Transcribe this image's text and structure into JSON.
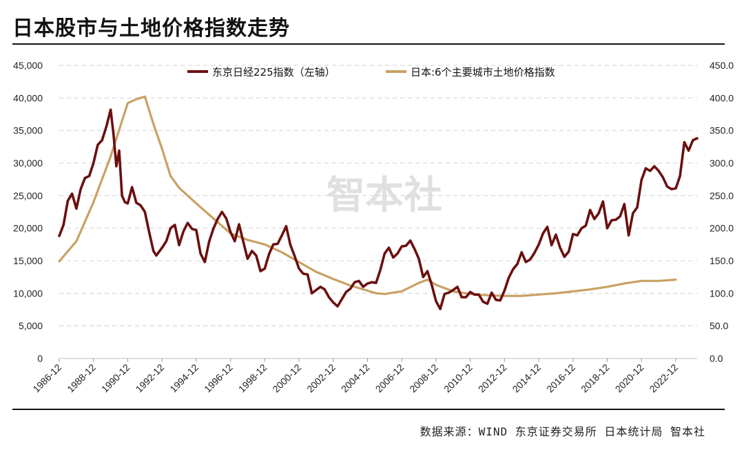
{
  "title": "日本股市与土地价格指数走势",
  "source": "数据来源：WIND 东京证券交易所 日本统计局 智本社",
  "watermark": "智本社",
  "colors": {
    "nikkei": "#6b0f0f",
    "land": "#c9a063",
    "grid": "#d0d0d0"
  },
  "chart_data": {
    "type": "line",
    "x_start": "1986-12",
    "x_end": "2024-03",
    "x_tick_labels": [
      "1986-12",
      "1988-12",
      "1990-12",
      "1992-12",
      "1994-12",
      "1996-12",
      "1998-12",
      "2000-12",
      "2002-12",
      "2004-12",
      "2006-12",
      "2008-12",
      "2010-12",
      "2012-12",
      "2014-12",
      "2016-12",
      "2018-12",
      "2020-12",
      "2022-12"
    ],
    "y_left_ticks": [
      "0",
      "5,000",
      "10,000",
      "15,000",
      "20,000",
      "25,000",
      "30,000",
      "35,000",
      "40,000",
      "45,000"
    ],
    "y_right_ticks": [
      "0.0",
      "50.0",
      "100.0",
      "150.0",
      "200.0",
      "250.0",
      "300.0",
      "350.0",
      "400.0",
      "450.0"
    ],
    "y_left_lim": [
      0,
      45000
    ],
    "y_right_lim": [
      0,
      450
    ],
    "grid": "horizontal-dashed",
    "legend_position": "top",
    "series": [
      {
        "name": "东京日经225指数（左轴）",
        "axis": "left",
        "points": [
          [
            "1986-12",
            18800
          ],
          [
            "1987-03",
            20500
          ],
          [
            "1987-06",
            24200
          ],
          [
            "1987-09",
            25300
          ],
          [
            "1987-12",
            23000
          ],
          [
            "1988-03",
            26000
          ],
          [
            "1988-06",
            27700
          ],
          [
            "1988-09",
            28000
          ],
          [
            "1988-12",
            30000
          ],
          [
            "1989-03",
            32800
          ],
          [
            "1989-06",
            33500
          ],
          [
            "1989-09",
            35600
          ],
          [
            "1989-12",
            38200
          ],
          [
            "1990-02",
            34500
          ],
          [
            "1990-04",
            29500
          ],
          [
            "1990-06",
            31900
          ],
          [
            "1990-08",
            25000
          ],
          [
            "1990-10",
            24000
          ],
          [
            "1990-12",
            23800
          ],
          [
            "1991-03",
            26300
          ],
          [
            "1991-06",
            23900
          ],
          [
            "1991-09",
            23500
          ],
          [
            "1991-12",
            22500
          ],
          [
            "1992-03",
            19400
          ],
          [
            "1992-06",
            16500
          ],
          [
            "1992-08",
            15800
          ],
          [
            "1992-12",
            17000
          ],
          [
            "1993-03",
            18000
          ],
          [
            "1993-06",
            20000
          ],
          [
            "1993-09",
            20500
          ],
          [
            "1993-12",
            17400
          ],
          [
            "1994-03",
            19500
          ],
          [
            "1994-06",
            20800
          ],
          [
            "1994-09",
            19900
          ],
          [
            "1994-12",
            19700
          ],
          [
            "1995-03",
            16100
          ],
          [
            "1995-06",
            14800
          ],
          [
            "1995-09",
            17900
          ],
          [
            "1995-12",
            19900
          ],
          [
            "1996-03",
            21400
          ],
          [
            "1996-06",
            22500
          ],
          [
            "1996-09",
            21500
          ],
          [
            "1996-12",
            19400
          ],
          [
            "1997-03",
            18000
          ],
          [
            "1997-06",
            20600
          ],
          [
            "1997-09",
            17900
          ],
          [
            "1997-12",
            15300
          ],
          [
            "1998-03",
            16500
          ],
          [
            "1998-06",
            15800
          ],
          [
            "1998-09",
            13400
          ],
          [
            "1998-12",
            13800
          ],
          [
            "1999-03",
            16000
          ],
          [
            "1999-06",
            17500
          ],
          [
            "1999-09",
            17600
          ],
          [
            "1999-12",
            18900
          ],
          [
            "2000-03",
            20300
          ],
          [
            "2000-06",
            17400
          ],
          [
            "2000-09",
            15700
          ],
          [
            "2000-12",
            13800
          ],
          [
            "2001-03",
            13000
          ],
          [
            "2001-06",
            12900
          ],
          [
            "2001-09",
            10000
          ],
          [
            "2001-12",
            10500
          ],
          [
            "2002-03",
            11000
          ],
          [
            "2002-06",
            10600
          ],
          [
            "2002-09",
            9400
          ],
          [
            "2002-12",
            8600
          ],
          [
            "2003-03",
            8000
          ],
          [
            "2003-06",
            9100
          ],
          [
            "2003-09",
            10200
          ],
          [
            "2003-12",
            10700
          ],
          [
            "2004-03",
            11700
          ],
          [
            "2004-06",
            11900
          ],
          [
            "2004-09",
            11000
          ],
          [
            "2004-12",
            11500
          ],
          [
            "2005-03",
            11700
          ],
          [
            "2005-06",
            11600
          ],
          [
            "2005-09",
            13600
          ],
          [
            "2005-12",
            16100
          ],
          [
            "2006-03",
            17000
          ],
          [
            "2006-06",
            15500
          ],
          [
            "2006-09",
            16100
          ],
          [
            "2006-12",
            17200
          ],
          [
            "2007-03",
            17300
          ],
          [
            "2007-06",
            18100
          ],
          [
            "2007-09",
            16800
          ],
          [
            "2007-12",
            15300
          ],
          [
            "2008-03",
            12500
          ],
          [
            "2008-06",
            13400
          ],
          [
            "2008-09",
            11300
          ],
          [
            "2008-12",
            8800
          ],
          [
            "2009-03",
            7600
          ],
          [
            "2009-06",
            9900
          ],
          [
            "2009-09",
            10100
          ],
          [
            "2009-12",
            10500
          ],
          [
            "2010-03",
            11000
          ],
          [
            "2010-06",
            9400
          ],
          [
            "2010-09",
            9400
          ],
          [
            "2010-12",
            10200
          ],
          [
            "2011-03",
            9800
          ],
          [
            "2011-06",
            9800
          ],
          [
            "2011-09",
            8700
          ],
          [
            "2011-12",
            8400
          ],
          [
            "2012-03",
            10100
          ],
          [
            "2012-06",
            9000
          ],
          [
            "2012-09",
            8900
          ],
          [
            "2012-12",
            10400
          ],
          [
            "2013-03",
            12400
          ],
          [
            "2013-06",
            13700
          ],
          [
            "2013-09",
            14500
          ],
          [
            "2013-12",
            16300
          ],
          [
            "2014-03",
            14800
          ],
          [
            "2014-06",
            15200
          ],
          [
            "2014-09",
            16200
          ],
          [
            "2014-12",
            17500
          ],
          [
            "2015-03",
            19200
          ],
          [
            "2015-06",
            20200
          ],
          [
            "2015-09",
            17400
          ],
          [
            "2015-12",
            19000
          ],
          [
            "2016-03",
            17000
          ],
          [
            "2016-06",
            15600
          ],
          [
            "2016-09",
            16400
          ],
          [
            "2016-12",
            19100
          ],
          [
            "2017-03",
            18900
          ],
          [
            "2017-06",
            20000
          ],
          [
            "2017-09",
            20400
          ],
          [
            "2017-12",
            22800
          ],
          [
            "2018-03",
            21400
          ],
          [
            "2018-06",
            22300
          ],
          [
            "2018-09",
            24100
          ],
          [
            "2018-12",
            20000
          ],
          [
            "2019-03",
            21200
          ],
          [
            "2019-06",
            21300
          ],
          [
            "2019-09",
            21800
          ],
          [
            "2019-12",
            23700
          ],
          [
            "2020-03",
            18900
          ],
          [
            "2020-06",
            22300
          ],
          [
            "2020-09",
            23200
          ],
          [
            "2020-12",
            27400
          ],
          [
            "2021-03",
            29200
          ],
          [
            "2021-06",
            28800
          ],
          [
            "2021-09",
            29500
          ],
          [
            "2021-12",
            28800
          ],
          [
            "2022-03",
            27800
          ],
          [
            "2022-06",
            26400
          ],
          [
            "2022-09",
            26000
          ],
          [
            "2022-12",
            26100
          ],
          [
            "2023-03",
            28000
          ],
          [
            "2023-06",
            33200
          ],
          [
            "2023-09",
            31900
          ],
          [
            "2023-12",
            33500
          ],
          [
            "2024-03",
            33800
          ]
        ]
      },
      {
        "name": "日本:6个主要城市土地价格指数",
        "axis": "right",
        "points": [
          [
            "1986-12",
            149
          ],
          [
            "1987-12",
            180
          ],
          [
            "1988-12",
            240
          ],
          [
            "1989-12",
            310
          ],
          [
            "1990-12",
            392
          ],
          [
            "1991-06",
            398
          ],
          [
            "1991-12",
            402
          ],
          [
            "1992-06",
            360
          ],
          [
            "1992-12",
            322
          ],
          [
            "1993-06",
            280
          ],
          [
            "1993-12",
            262
          ],
          [
            "1994-12",
            238
          ],
          [
            "1995-12",
            215
          ],
          [
            "1996-12",
            192
          ],
          [
            "1997-12",
            182
          ],
          [
            "1998-12",
            175
          ],
          [
            "1999-12",
            163
          ],
          [
            "2000-12",
            148
          ],
          [
            "2001-12",
            133
          ],
          [
            "2002-12",
            122
          ],
          [
            "2003-12",
            112
          ],
          [
            "2004-12",
            104
          ],
          [
            "2005-06",
            100
          ],
          [
            "2005-12",
            99
          ],
          [
            "2006-12",
            103
          ],
          [
            "2007-12",
            116
          ],
          [
            "2008-06",
            121
          ],
          [
            "2008-12",
            113
          ],
          [
            "2009-12",
            103
          ],
          [
            "2010-12",
            99
          ],
          [
            "2011-12",
            97
          ],
          [
            "2012-12",
            96
          ],
          [
            "2013-12",
            96
          ],
          [
            "2014-12",
            98
          ],
          [
            "2015-12",
            100
          ],
          [
            "2016-12",
            103
          ],
          [
            "2017-12",
            106
          ],
          [
            "2018-12",
            110
          ],
          [
            "2019-12",
            115
          ],
          [
            "2020-12",
            119
          ],
          [
            "2021-12",
            119
          ],
          [
            "2022-12",
            121
          ]
        ]
      }
    ]
  }
}
